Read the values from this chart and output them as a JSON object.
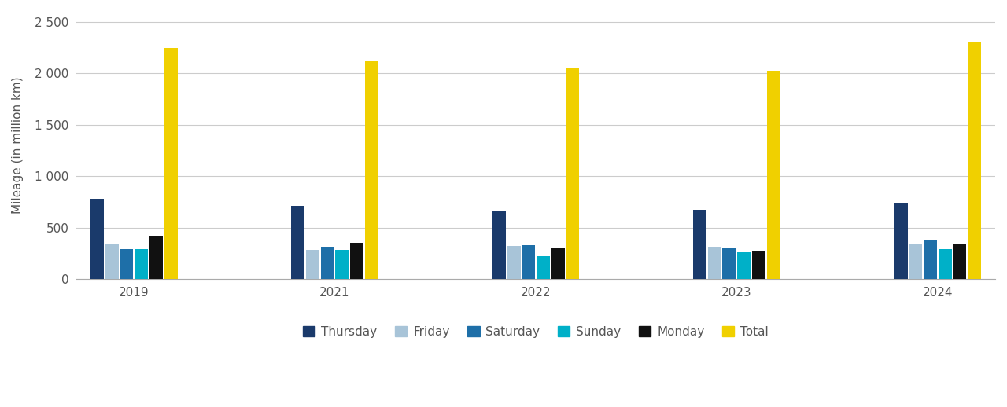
{
  "years": [
    "2019",
    "2021",
    "2022",
    "2023",
    "2024"
  ],
  "series": {
    "Thursday": [
      780,
      710,
      665,
      675,
      745
    ],
    "Friday": [
      340,
      285,
      325,
      315,
      340
    ],
    "Saturday": [
      290,
      315,
      330,
      310,
      375
    ],
    "Sunday": [
      295,
      285,
      225,
      260,
      295
    ],
    "Monday": [
      420,
      350,
      310,
      275,
      340
    ],
    "Total": [
      2250,
      2120,
      2055,
      2030,
      2300
    ]
  },
  "colors": {
    "Thursday": "#1a3a6b",
    "Friday": "#a8c4d8",
    "Saturday": "#1e6fa8",
    "Sunday": "#00b0c8",
    "Monday": "#111111",
    "Total": "#f0d000"
  },
  "ylabel": "Mileage (in million km)",
  "ylim": [
    0,
    2600
  ],
  "yticks": [
    0,
    500,
    1000,
    1500,
    2000,
    2500
  ],
  "ytick_labels": [
    "0",
    "500",
    "1 000",
    "1 500",
    "2 000",
    "2 500"
  ],
  "legend_order": [
    "Thursday",
    "Friday",
    "Saturday",
    "Sunday",
    "Monday",
    "Total"
  ],
  "bar_width": 0.55,
  "figsize": [
    12.8,
    5.18
  ],
  "dpi": 100
}
